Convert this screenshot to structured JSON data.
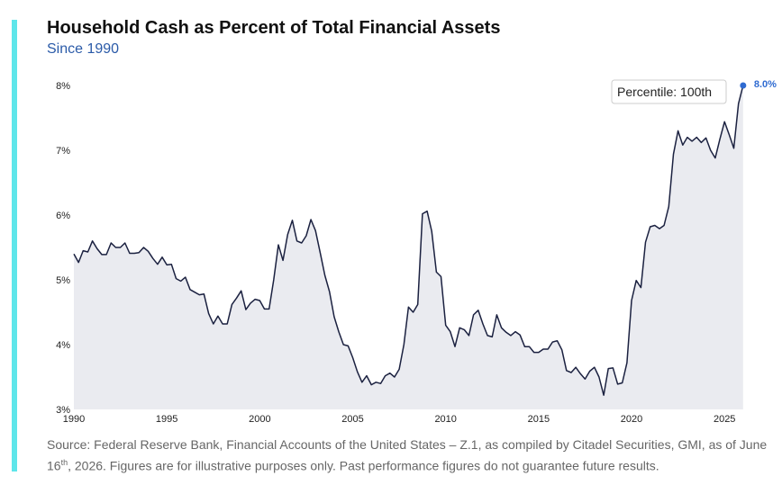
{
  "colors": {
    "accent": "#5ee6ea",
    "subtitle": "#2a5aa8",
    "line": "#1b2140",
    "area": "#eaebf0",
    "last_point": "#2f6bd1"
  },
  "header": {
    "title": "Household Cash as Percent of Total Financial Assets",
    "subtitle": "Since 1990"
  },
  "annotation": {
    "percentile": "Percentile: 100th",
    "last_value_label": "8.0%"
  },
  "source": {
    "text_before": "Source: Federal Reserve Bank, Financial Accounts of the United States – Z.1, as compiled by Citadel Securities, GMI, as of June 16",
    "superscript": "th",
    "text_after": ", 2026. Figures are for illustrative purposes only. Past performance figures do not guarantee future results."
  },
  "chart_data": {
    "type": "area",
    "title": "Household Cash as Percent of Total Financial Assets",
    "subtitle": "Since 1990",
    "xlim": [
      1990,
      2026.25
    ],
    "ylim": [
      3,
      8.5
    ],
    "yticks": [
      3,
      4,
      5,
      6,
      7,
      8
    ],
    "ytick_labels": [
      "3%",
      "4%",
      "5%",
      "6%",
      "7%",
      "8%"
    ],
    "xticks": [
      1990,
      1995,
      2000,
      2005,
      2010,
      2015,
      2020,
      2025
    ],
    "xtick_labels": [
      "1990",
      "1995",
      "2000",
      "2005",
      "2010",
      "2015",
      "2020",
      "2025"
    ],
    "grid": false,
    "series": [
      {
        "x": [
          1990,
          1990.25,
          1990.5,
          1990.75,
          1991,
          1991.25,
          1991.5,
          1991.75,
          1992,
          1992.25,
          1992.5,
          1992.75,
          1993,
          1993.25,
          1993.5,
          1993.75,
          1994,
          1994.25,
          1994.5,
          1994.75,
          1995,
          1995.25,
          1995.5,
          1995.75,
          1996,
          1996.25,
          1996.5,
          1996.75,
          1997,
          1997.25,
          1997.5,
          1997.75,
          1998,
          1998.25,
          1998.5,
          1998.75,
          1999,
          1999.25,
          1999.5,
          1999.75,
          2000,
          2000.25,
          2000.5,
          2000.75,
          2001,
          2001.25,
          2001.5,
          2001.75,
          2002,
          2002.25,
          2002.5,
          2002.75,
          2003,
          2003.25,
          2003.5,
          2003.75,
          2004,
          2004.25,
          2004.5,
          2004.75,
          2005,
          2005.25,
          2005.5,
          2005.75,
          2006,
          2006.25,
          2006.5,
          2006.75,
          2007,
          2007.25,
          2007.5,
          2007.75,
          2008,
          2008.25,
          2008.5,
          2008.75,
          2009,
          2009.25,
          2009.5,
          2009.75,
          2010,
          2010.25,
          2010.5,
          2010.75,
          2011,
          2011.25,
          2011.5,
          2011.75,
          2012,
          2012.25,
          2012.5,
          2012.75,
          2013,
          2013.25,
          2013.5,
          2013.75,
          2014,
          2014.25,
          2014.5,
          2014.75,
          2015,
          2015.25,
          2015.5,
          2015.75,
          2016,
          2016.25,
          2016.5,
          2016.75,
          2017,
          2017.25,
          2017.5,
          2017.75,
          2018,
          2018.25,
          2018.5,
          2018.75,
          2019,
          2019.25,
          2019.5,
          2019.75,
          2020,
          2020.25,
          2020.5,
          2020.75,
          2021,
          2021.25,
          2021.5,
          2021.75,
          2022,
          2022.25,
          2022.5,
          2022.75,
          2023,
          2023.25,
          2023.5,
          2023.75,
          2024,
          2024.25,
          2024.5,
          2024.75,
          2025,
          2025.25,
          2025.5,
          2025.75,
          2026
        ],
        "values": [
          5.4,
          5.27,
          5.45,
          5.43,
          5.6,
          5.48,
          5.39,
          5.39,
          5.57,
          5.5,
          5.5,
          5.57,
          5.41,
          5.41,
          5.42,
          5.5,
          5.44,
          5.33,
          5.24,
          5.35,
          5.23,
          5.24,
          5.02,
          4.98,
          5.04,
          4.85,
          4.81,
          4.77,
          4.78,
          4.48,
          4.32,
          4.44,
          4.32,
          4.32,
          4.62,
          4.72,
          4.83,
          4.54,
          4.64,
          4.7,
          4.68,
          4.55,
          4.55,
          5.0,
          5.54,
          5.3,
          5.7,
          5.92,
          5.6,
          5.57,
          5.68,
          5.93,
          5.76,
          5.42,
          5.07,
          4.82,
          4.43,
          4.2,
          4.0,
          3.98,
          3.8,
          3.58,
          3.42,
          3.52,
          3.38,
          3.42,
          3.4,
          3.52,
          3.56,
          3.5,
          3.62,
          4.0,
          4.58,
          4.5,
          4.62,
          6.02,
          6.06,
          5.75,
          5.12,
          5.05,
          4.3,
          4.2,
          3.97,
          4.26,
          4.23,
          4.14,
          4.46,
          4.53,
          4.32,
          4.14,
          4.12,
          4.46,
          4.26,
          4.19,
          4.14,
          4.2,
          4.15,
          3.97,
          3.97,
          3.88,
          3.88,
          3.93,
          3.93,
          4.04,
          4.06,
          3.92,
          3.6,
          3.57,
          3.65,
          3.55,
          3.47,
          3.59,
          3.65,
          3.5,
          3.22,
          3.63,
          3.64,
          3.39,
          3.41,
          3.72,
          4.68,
          4.99,
          4.88,
          5.58,
          5.82,
          5.84,
          5.79,
          5.84,
          6.13,
          6.94,
          7.3,
          7.08,
          7.2,
          7.14,
          7.2,
          7.12,
          7.19,
          7.0,
          6.88,
          7.17,
          7.44,
          7.24,
          7.03,
          7.72,
          8.0
        ]
      }
    ],
    "annotations": [
      "Percentile: 100th",
      "8.0%"
    ]
  }
}
